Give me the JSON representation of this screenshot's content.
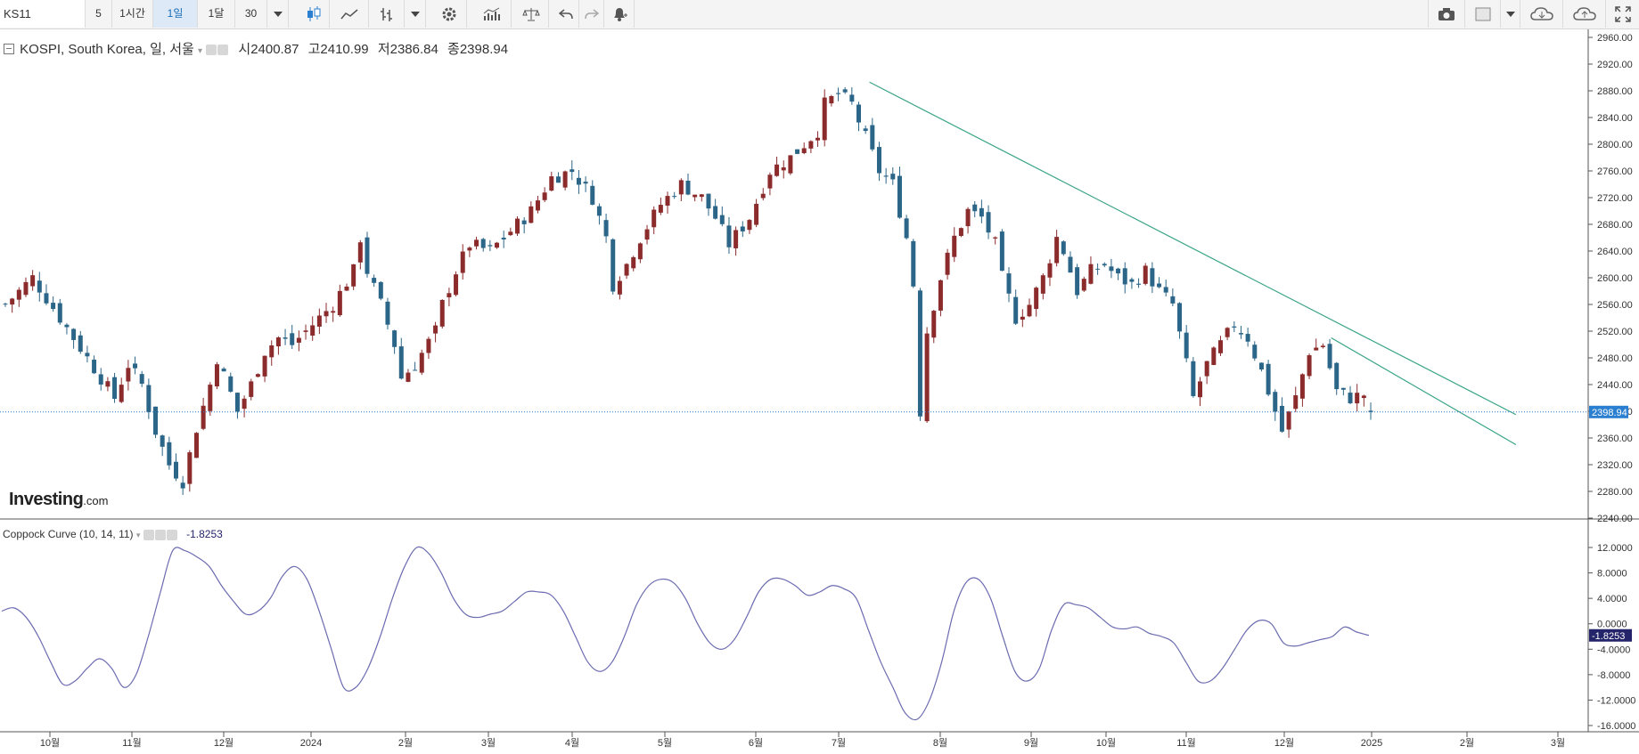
{
  "toolbar": {
    "symbol": "KS11",
    "intervals": [
      "5",
      "1시간",
      "1일",
      "1달",
      "30"
    ],
    "active_interval": "1일",
    "icons": [
      "candlestick-icon",
      "line-chart-icon",
      "bar-type-icon",
      "dropdown-arrow-icon",
      "settings-gear-icon",
      "indicators-icon",
      "compare-scale-icon",
      "undo-icon",
      "redo-icon",
      "alert-bell-icon",
      "camera-icon",
      "template-box-icon",
      "cloud-download-icon",
      "cloud-upload-icon",
      "fullscreen-icon"
    ]
  },
  "legend": {
    "title": "KOSPI, South Korea, 일, 서울",
    "open_label": "시",
    "open": "2400.87",
    "high_label": "고",
    "high": "2410.99",
    "low_label": "저",
    "low": "2386.84",
    "close_label": "종",
    "close": "2398.94"
  },
  "indicator": {
    "name": "Coppock Curve (10, 14, 11)",
    "value": "-1.8253"
  },
  "branding": {
    "logo_main": "Investing",
    "logo_suffix": ".com"
  },
  "colors": {
    "up": "#8b2b2b",
    "down": "#2b6688",
    "trend": "#3aa487",
    "coppock": "#6b6bb0",
    "price_tag": "#2a7fd0",
    "ind_tag": "#24246b"
  },
  "chart_data": [
    {
      "type": "candlestick",
      "title": "KOSPI, South Korea, 일, 서울",
      "ylim": [
        2240,
        2960
      ],
      "y_ticks": [
        "2960.00",
        "2920.00",
        "2880.00",
        "2840.00",
        "2800.00",
        "2760.00",
        "2720.00",
        "2680.00",
        "2640.00",
        "2600.00",
        "2560.00",
        "2520.00",
        "2480.00",
        "2440.00",
        "2400.00",
        "2360.00",
        "2320.00",
        "2280.00",
        "2240.00"
      ],
      "x_ticks": [
        "10월",
        "11월",
        "12월",
        "2024",
        "2월",
        "3월",
        "4월",
        "5월",
        "6월",
        "7월",
        "8월",
        "9월",
        "10월",
        "11월",
        "12월",
        "2025",
        "2월",
        "3월"
      ],
      "last_price": "2398.94",
      "close_path": [
        [
          0,
          2560
        ],
        [
          4,
          2600
        ],
        [
          8,
          2540
        ],
        [
          12,
          2480
        ],
        [
          16,
          2420
        ],
        [
          18,
          2470
        ],
        [
          20,
          2440
        ],
        [
          22,
          2370
        ],
        [
          24,
          2320
        ],
        [
          26,
          2295
        ],
        [
          28,
          2375
        ],
        [
          30,
          2440
        ],
        [
          31,
          2480
        ],
        [
          34,
          2400
        ],
        [
          36,
          2440
        ],
        [
          38,
          2490
        ],
        [
          40,
          2510
        ],
        [
          42,
          2500
        ],
        [
          45,
          2530
        ],
        [
          48,
          2560
        ],
        [
          51,
          2610
        ],
        [
          52,
          2660
        ],
        [
          53,
          2610
        ],
        [
          55,
          2560
        ],
        [
          57,
          2500
        ],
        [
          58,
          2450
        ],
        [
          60,
          2470
        ],
        [
          63,
          2520
        ],
        [
          64,
          2560
        ],
        [
          66,
          2610
        ],
        [
          68,
          2650
        ],
        [
          71,
          2640
        ],
        [
          74,
          2670
        ],
        [
          77,
          2700
        ],
        [
          80,
          2750
        ],
        [
          83,
          2760
        ],
        [
          86,
          2720
        ],
        [
          88,
          2660
        ],
        [
          89,
          2590
        ],
        [
          91,
          2620
        ],
        [
          93,
          2660
        ],
        [
          96,
          2710
        ],
        [
          99,
          2740
        ],
        [
          102,
          2720
        ],
        [
          104,
          2690
        ],
        [
          106,
          2650
        ],
        [
          109,
          2690
        ],
        [
          112,
          2760
        ],
        [
          115,
          2780
        ],
        [
          117,
          2800
        ],
        [
          119,
          2820
        ],
        [
          120,
          2860
        ],
        [
          122,
          2875
        ],
        [
          124,
          2860
        ],
        [
          126,
          2810
        ],
        [
          128,
          2760
        ],
        [
          130,
          2740
        ],
        [
          131,
          2700
        ],
        [
          132,
          2660
        ],
        [
          133,
          2590
        ],
        [
          134,
          2400
        ],
        [
          135,
          2520
        ],
        [
          137,
          2600
        ],
        [
          139,
          2660
        ],
        [
          141,
          2700
        ],
        [
          143,
          2690
        ],
        [
          145,
          2650
        ],
        [
          146,
          2600
        ],
        [
          148,
          2540
        ],
        [
          150,
          2560
        ],
        [
          152,
          2600
        ],
        [
          154,
          2660
        ],
        [
          155,
          2640
        ],
        [
          157,
          2580
        ],
        [
          159,
          2610
        ],
        [
          161,
          2620
        ],
        [
          163,
          2600
        ],
        [
          165,
          2590
        ],
        [
          167,
          2610
        ],
        [
          169,
          2580
        ],
        [
          171,
          2560
        ],
        [
          173,
          2470
        ],
        [
          174,
          2420
        ],
        [
          176,
          2470
        ],
        [
          178,
          2500
        ],
        [
          180,
          2530
        ],
        [
          182,
          2510
        ],
        [
          184,
          2460
        ],
        [
          186,
          2400
        ],
        [
          187,
          2370
        ],
        [
          189,
          2420
        ],
        [
          191,
          2490
        ],
        [
          193,
          2500
        ],
        [
          195,
          2430
        ],
        [
          197,
          2420
        ],
        [
          199,
          2425
        ],
        [
          200,
          2399
        ]
      ],
      "trendlines": [
        {
          "from": [
            "2024-07-11",
            2893
          ],
          "to": [
            "2025-02-20",
            2395
          ]
        },
        {
          "from": [
            "2024-12-18",
            2510
          ],
          "to": [
            "2025-02-20",
            2350
          ]
        }
      ]
    },
    {
      "type": "line",
      "title": "Coppock Curve (10, 14, 11)",
      "ylim": [
        -16,
        12
      ],
      "y_ticks": [
        "12.0000",
        "8.0000",
        "4.0000",
        "0.0000",
        "-4.0000",
        "-8.0000",
        "-12.0000",
        "-16.0000"
      ],
      "last_value": "-1.8253",
      "series": [
        {
          "name": "Coppock Curve (10, 14, 11)",
          "values": [
            2,
            2.5,
            1,
            -2,
            -6,
            -9.5,
            -9,
            -7,
            -5.5,
            -7,
            -10,
            -8,
            -2,
            5,
            11.5,
            11.5,
            10.5,
            9,
            6,
            3.5,
            1.5,
            2,
            4,
            7.5,
            9,
            7,
            2,
            -4,
            -10,
            -10,
            -7,
            -2,
            4,
            9,
            12,
            11,
            8,
            4,
            1.5,
            1,
            1.5,
            2,
            3.5,
            5,
            5,
            4.5,
            2,
            -2,
            -6,
            -7.5,
            -6,
            -2,
            3,
            6,
            7,
            6.5,
            4,
            0,
            -3,
            -4,
            -2.5,
            1,
            5,
            7,
            7,
            6,
            4.5,
            5,
            6,
            5.5,
            4,
            -1,
            -6,
            -10,
            -14,
            -15,
            -12,
            -6,
            2,
            6.5,
            7,
            4,
            -2,
            -7.5,
            -9,
            -7,
            -1,
            3,
            3,
            2.5,
            1,
            -0.5,
            -0.8,
            -0.5,
            -1.5,
            -2,
            -3,
            -6,
            -9,
            -9,
            -7,
            -4,
            -1,
            0.5,
            0,
            -3,
            -3.5,
            -3,
            -2.5,
            -2,
            -0.5,
            -1.3,
            -1.83
          ]
        }
      ]
    }
  ]
}
